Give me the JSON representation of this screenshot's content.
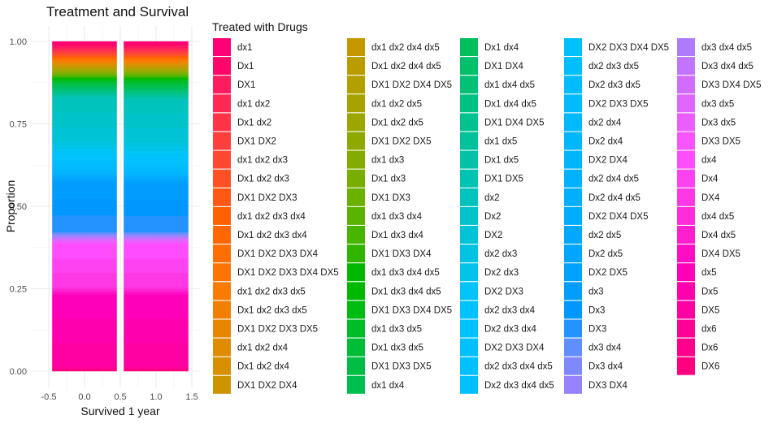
{
  "chart_data": {
    "type": "bar",
    "title": "Treatment and Survival",
    "xlabel": "Survived 1 year",
    "ylabel": "Proportion",
    "position": "fill",
    "xlim": [
      -0.5,
      1.5
    ],
    "ylim": [
      0,
      1
    ],
    "x_ticks": [
      -0.5,
      0.0,
      0.5,
      1.0,
      1.5
    ],
    "x_tick_labels": [
      "-0.5",
      "0.0",
      "0.5",
      "1.0",
      "1.5"
    ],
    "y_ticks": [
      0,
      0.25,
      0.5,
      0.75,
      1.0
    ],
    "y_tick_labels": [
      "0.00",
      "0.25",
      "0.50",
      "0.75",
      "1.00"
    ],
    "grid": true,
    "legend_position": "right",
    "legend_title": "Treated with Drugs",
    "bars_x": [
      0,
      1
    ],
    "categories": [
      "dx1",
      "Dx1",
      "DX1",
      "dx1 dx2",
      "Dx1 dx2",
      "DX1 DX2",
      "dx1 dx2 dx3",
      "Dx1 dx2 dx3",
      "DX1 DX2 DX3",
      "dx1 dx2 dx3 dx4",
      "Dx1 dx2 dx3 dx4",
      "DX1 DX2 DX3 DX4",
      "DX1 DX2 DX3 DX4 DX5",
      "dx1 dx2 dx3 dx5",
      "Dx1 dx2 dx3 dx5",
      "DX1 DX2 DX3 DX5",
      "dx1 dx2 dx4",
      "Dx1 dx2 dx4",
      "DX1 DX2 DX4",
      "dx1 dx2 dx4 dx5",
      "Dx1 dx2 dx4 dx5",
      "DX1 DX2 DX4 DX5",
      "dx1 dx2 dx5",
      "Dx1 dx2 dx5",
      "DX1 DX2 DX5",
      "dx1 dx3",
      "Dx1 dx3",
      "DX1 DX3",
      "dx1 dx3 dx4",
      "Dx1 dx3 dx4",
      "DX1 DX3 DX4",
      "dx1 dx3 dx4 dx5",
      "Dx1 dx3 dx4 dx5",
      "DX1 DX3 DX4 DX5",
      "dx1 dx3 dx5",
      "Dx1 dx3 dx5",
      "DX1 DX3 DX5",
      "dx1 dx4",
      "Dx1 dx4",
      "DX1 DX4",
      "dx1 dx4 dx5",
      "Dx1 dx4 dx5",
      "DX1 DX4 DX5",
      "dx1 dx5",
      "Dx1 dx5",
      "DX1 DX5",
      "dx2",
      "Dx2",
      "DX2",
      "dx2 dx3",
      "Dx2 dx3",
      "DX2 DX3",
      "dx2 dx3 dx4",
      "Dx2 dx3 dx4",
      "DX2 DX3 DX4",
      "dx2 dx3 dx4 dx5",
      "Dx2 dx3 dx4 dx5",
      "DX2 DX3 DX4 DX5",
      "dx2 dx3 dx5",
      "Dx2 dx3 dx5",
      "DX2 DX3 DX5",
      "dx2 dx4",
      "Dx2 dx4",
      "DX2 DX4",
      "dx2 dx4 dx5",
      "Dx2 dx4 dx5",
      "DX2 DX4 DX5",
      "dx2 dx5",
      "Dx2 dx5",
      "DX2 DX5",
      "dx3",
      "Dx3",
      "DX3",
      "dx3 dx4",
      "Dx3 dx4",
      "DX3 DX4",
      "dx3 dx4 dx5",
      "Dx3 dx4 dx5",
      "DX3 DX4 DX5",
      "dx3 dx5",
      "Dx3 dx5",
      "DX3 DX5",
      "dx4",
      "Dx4",
      "DX4",
      "dx4 dx5",
      "Dx4 dx5",
      "DX4 DX5",
      "dx5",
      "Dx5",
      "DX5",
      "dx6",
      "Dx6",
      "DX6"
    ],
    "series": [
      {
        "x": 0,
        "values": [
          0.005,
          0.005,
          0.005,
          0.004,
          0.003,
          0.003,
          0.003,
          0.002,
          0.002,
          0.002,
          0.002,
          0.002,
          0.002,
          0.002,
          0.002,
          0.002,
          0.002,
          0.002,
          0.002,
          0.002,
          0.002,
          0.002,
          0.002,
          0.002,
          0.002,
          0.002,
          0.002,
          0.002,
          0.002,
          0.002,
          0.002,
          0.002,
          0.002,
          0.002,
          0.003,
          0.003,
          0.003,
          0.003,
          0.003,
          0.003,
          0.003,
          0.003,
          0.003,
          0.003,
          0.003,
          0.003,
          0.03,
          0.03,
          0.03,
          0.009,
          0.009,
          0.009,
          0.003,
          0.003,
          0.003,
          0.002,
          0.002,
          0.002,
          0.004,
          0.004,
          0.004,
          0.004,
          0.004,
          0.004,
          0.002,
          0.002,
          0.002,
          0.004,
          0.004,
          0.004,
          0.035,
          0.035,
          0.035,
          0.003,
          0.003,
          0.003,
          0.002,
          0.002,
          0.002,
          0.003,
          0.003,
          0.003,
          0.03,
          0.03,
          0.03,
          0.005,
          0.005,
          0.005,
          0.05,
          0.05,
          0.05,
          0.003,
          0.003,
          0.003
        ]
      },
      {
        "x": 1,
        "values": [
          0.005,
          0.005,
          0.005,
          0.004,
          0.003,
          0.003,
          0.003,
          0.002,
          0.002,
          0.002,
          0.002,
          0.002,
          0.002,
          0.002,
          0.002,
          0.002,
          0.002,
          0.002,
          0.002,
          0.002,
          0.002,
          0.002,
          0.002,
          0.002,
          0.002,
          0.002,
          0.002,
          0.002,
          0.002,
          0.002,
          0.002,
          0.002,
          0.002,
          0.002,
          0.004,
          0.004,
          0.004,
          0.003,
          0.003,
          0.003,
          0.003,
          0.003,
          0.003,
          0.003,
          0.003,
          0.003,
          0.03,
          0.03,
          0.03,
          0.009,
          0.009,
          0.009,
          0.003,
          0.003,
          0.003,
          0.002,
          0.002,
          0.002,
          0.004,
          0.004,
          0.004,
          0.004,
          0.004,
          0.004,
          0.002,
          0.002,
          0.002,
          0.004,
          0.004,
          0.004,
          0.034,
          0.034,
          0.034,
          0.003,
          0.003,
          0.003,
          0.002,
          0.002,
          0.002,
          0.003,
          0.003,
          0.003,
          0.03,
          0.03,
          0.03,
          0.005,
          0.005,
          0.005,
          0.05,
          0.05,
          0.05,
          0.003,
          0.003,
          0.003
        ]
      }
    ]
  }
}
